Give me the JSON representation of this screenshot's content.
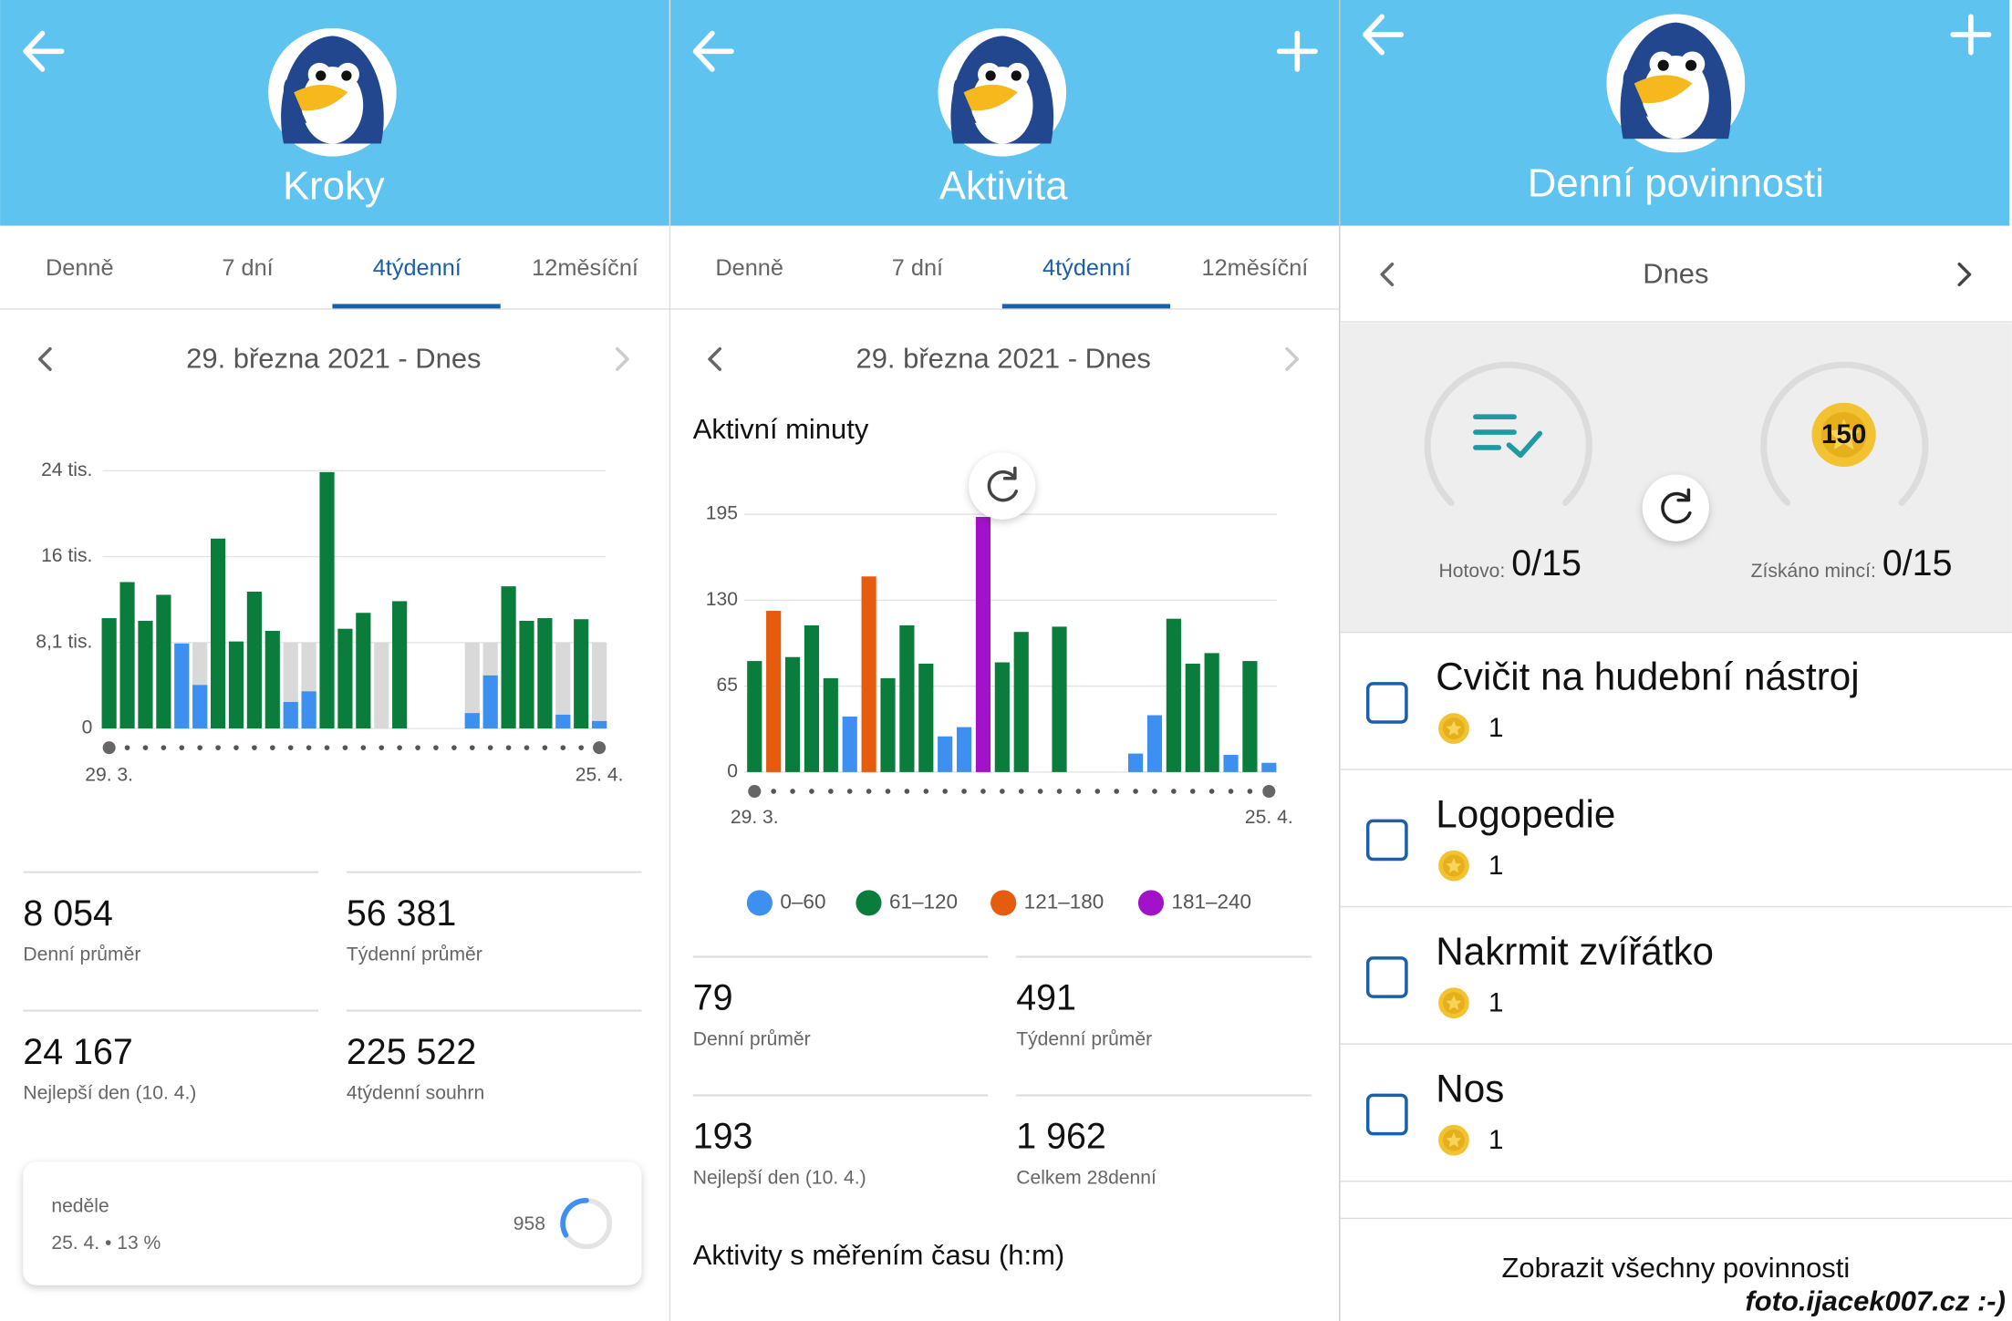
{
  "panels": [
    {
      "title": "Kroky",
      "tabs": [
        "Denně",
        "7 dní",
        "4týdenní",
        "12měsíční"
      ],
      "range": "29. března 2021 - Dnes",
      "chart": {
        "type": "bar",
        "grid": true,
        "backdrop_color": "#d9d9d9",
        "categories": [
          "29. 3.",
          null,
          null,
          null,
          null,
          null,
          null,
          null,
          null,
          null,
          null,
          null,
          null,
          null,
          null,
          null,
          null,
          null,
          null,
          null,
          null,
          null,
          null,
          null,
          null,
          null,
          null,
          "25. 4."
        ],
        "values": [
          10400,
          13800,
          10150,
          12600,
          8000,
          4100,
          17900,
          8200,
          12900,
          9200,
          2500,
          3500,
          24167,
          9400,
          10900,
          0,
          12000,
          null,
          null,
          null,
          1450,
          5000,
          13400,
          10150,
          10400,
          1300,
          10300,
          700
        ],
        "colors": [
          "#0a7d3c",
          "#0a7d3c",
          "#0a7d3c",
          "#0a7d3c",
          "#3d8ff0",
          "#3d8ff0",
          "#0a7d3c",
          "#0a7d3c",
          "#0a7d3c",
          "#0a7d3c",
          "#3d8ff0",
          "#3d8ff0",
          "#0a7d3c",
          "#0a7d3c",
          "#0a7d3c",
          "#3d8ff0",
          "#0a7d3c",
          null,
          null,
          null,
          "#3d8ff0",
          "#3d8ff0",
          "#0a7d3c",
          "#0a7d3c",
          "#0a7d3c",
          "#3d8ff0",
          "#0a7d3c",
          "#3d8ff0"
        ],
        "ylim": [
          0,
          24300
        ],
        "yticks": [
          0,
          {
            "value": 8100,
            "label": "8,1 tis."
          },
          {
            "value": 16200,
            "label": "16 tis."
          },
          {
            "value": 24300,
            "label": "24 tis."
          }
        ]
      },
      "stats": [
        {
          "value": "8 054",
          "label": "Denní průměr"
        },
        {
          "value": "56 381",
          "label": "Týdenní průměr"
        },
        {
          "value": "24 167",
          "label": "Nejlepší den (10. 4.)"
        },
        {
          "value": "225 522",
          "label": "4týdenní souhrn"
        }
      ],
      "card": {
        "day": "neděle",
        "detail": "25. 4. • 13 %",
        "value": "958"
      }
    },
    {
      "title": "Aktivita",
      "tabs": [
        "Denně",
        "7 dní",
        "4týdenní",
        "12měsíční"
      ],
      "range": "29. března 2021 - Dnes",
      "chart": {
        "type": "bar",
        "grid": true,
        "title": "Aktivní minuty",
        "categories": [
          "29. 3.",
          null,
          null,
          null,
          null,
          null,
          null,
          null,
          null,
          null,
          null,
          null,
          null,
          null,
          null,
          null,
          null,
          null,
          null,
          null,
          null,
          null,
          null,
          null,
          null,
          null,
          null,
          "25. 4."
        ],
        "values": [
          84,
          122,
          87,
          111,
          71,
          42,
          148,
          71,
          111,
          82,
          27,
          34,
          193,
          83,
          106,
          null,
          110,
          null,
          null,
          null,
          14,
          43,
          116,
          82,
          90,
          13,
          84,
          7
        ],
        "colors": [
          "#0a7d3c",
          "#e65c0f",
          "#0a7d3c",
          "#0a7d3c",
          "#0a7d3c",
          "#3d8ff0",
          "#e65c0f",
          "#0a7d3c",
          "#0a7d3c",
          "#0a7d3c",
          "#3d8ff0",
          "#3d8ff0",
          "#a112c8",
          "#0a7d3c",
          "#0a7d3c",
          null,
          "#0a7d3c",
          null,
          null,
          null,
          "#3d8ff0",
          "#3d8ff0",
          "#0a7d3c",
          "#0a7d3c",
          "#0a7d3c",
          "#3d8ff0",
          "#0a7d3c",
          "#3d8ff0"
        ],
        "ylim": [
          0,
          195
        ],
        "yticks": [
          0,
          65,
          130,
          195
        ],
        "legend": [
          {
            "name": "0–60",
            "color": "#3d8ff0"
          },
          {
            "name": "61–120",
            "color": "#0a7d3c"
          },
          {
            "name": "121–180",
            "color": "#e65c0f"
          },
          {
            "name": "181–240",
            "color": "#a112c8"
          }
        ]
      },
      "stats": [
        {
          "value": "79",
          "label": "Denní průměr"
        },
        {
          "value": "491",
          "label": "Týdenní průměr"
        },
        {
          "value": "193",
          "label": "Nejlepší den (10. 4.)"
        },
        {
          "value": "1 962",
          "label": "Celkem 28denní"
        }
      ],
      "section": "Aktivity s měřením času (h:m)"
    },
    {
      "title": "Denní povinnosti",
      "nav": "Dnes",
      "done_label": "Hotovo:",
      "done_value": "0/15",
      "coins_label": "Získáno mincí:",
      "coins_value": "0/15",
      "coin_badge": "150",
      "tasks": [
        {
          "name": "Cvičit na hudební nástroj",
          "coins": "1"
        },
        {
          "name": "Logopedie",
          "coins": "1"
        },
        {
          "name": "Nakrmit zvířátko",
          "coins": "1"
        },
        {
          "name": "Nos",
          "coins": "1"
        }
      ],
      "footer_link": "Zobrazit všechny povinnosti"
    }
  ],
  "watermark": "foto.ijacek007.cz :-)"
}
